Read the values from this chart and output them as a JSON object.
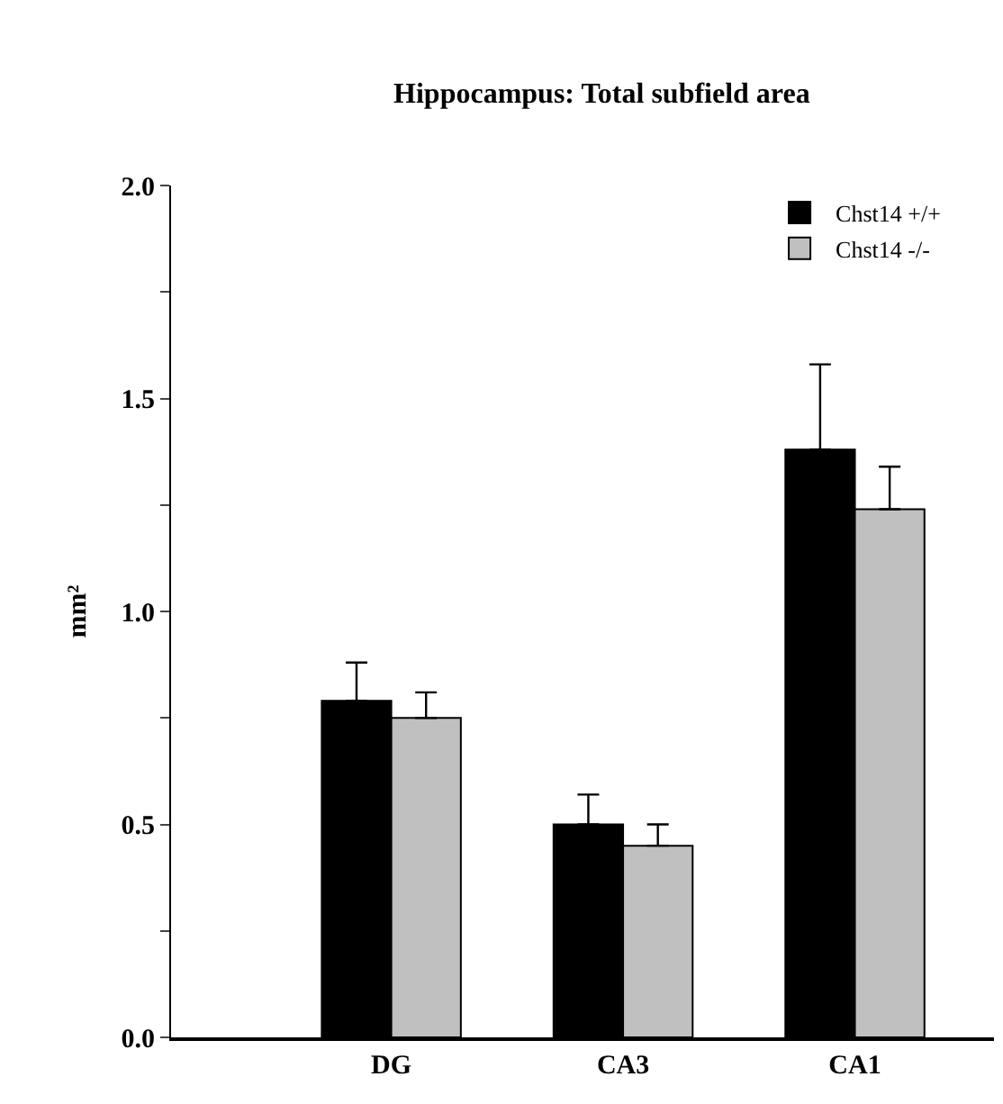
{
  "chart_data": {
    "type": "bar",
    "title": "Hippocampus: Total subfield area",
    "ylabel": "mm²",
    "categories": [
      "DG",
      "CA3",
      "CA1"
    ],
    "series": [
      {
        "name": "Chst14 +/+",
        "color": "#000000",
        "values": [
          0.79,
          0.5,
          1.38
        ],
        "errors": [
          [
            0.79,
            0.88
          ],
          [
            0.5,
            0.57
          ],
          [
            1.38,
            1.58
          ]
        ]
      },
      {
        "name": "Chst14 -/-",
        "color": "#c0c0c0",
        "values": [
          0.75,
          0.45,
          1.24
        ],
        "errors": [
          [
            0.75,
            0.81
          ],
          [
            0.45,
            0.5
          ],
          [
            1.24,
            1.34
          ]
        ]
      }
    ],
    "ylim": [
      0,
      2.0
    ],
    "yticks": [
      {
        "value": 0,
        "label": "0.0"
      },
      {
        "value": 0.25,
        "label": null
      },
      {
        "value": 0.5,
        "label": "0.5"
      },
      {
        "value": 0.75,
        "label": null
      },
      {
        "value": 1.0,
        "label": "1.0"
      },
      {
        "value": 1.25,
        "label": null
      },
      {
        "value": 1.5,
        "label": "1.5"
      },
      {
        "value": 1.75,
        "label": null
      },
      {
        "value": 2.0,
        "label": "2.0"
      }
    ],
    "legend": "top right"
  }
}
